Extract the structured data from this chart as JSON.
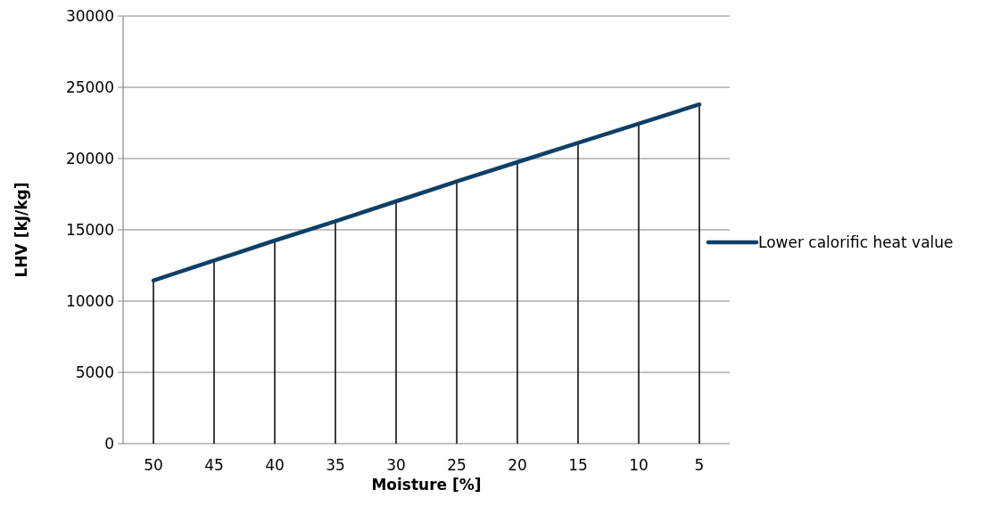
{
  "chart_data": {
    "type": "line",
    "xlabel": "Moisture [%]",
    "ylabel": "LHV [kJ/kg]",
    "categories": [
      "50",
      "45",
      "40",
      "35",
      "30",
      "25",
      "20",
      "15",
      "10",
      "5"
    ],
    "series": [
      {
        "name": "Lower calorific heat value",
        "color": "#0e3f66",
        "values": [
          11450,
          12850,
          14250,
          15600,
          17000,
          18400,
          19750,
          21100,
          22450,
          23800
        ]
      },
      {
        "type": "bar",
        "color": "#000000",
        "values": [
          11450,
          12850,
          14250,
          15600,
          17000,
          18400,
          19750,
          21100,
          22450,
          23800
        ]
      }
    ],
    "ylim": [
      0,
      30000
    ],
    "yticks": [
      0,
      5000,
      10000,
      15000,
      20000,
      25000,
      30000
    ],
    "grid": "y",
    "legend": "right",
    "marker": "none"
  }
}
